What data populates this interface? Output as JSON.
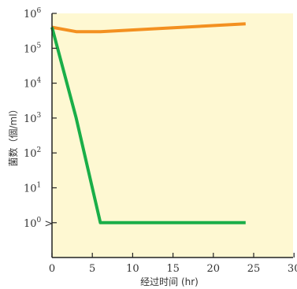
{
  "chart_data": {
    "type": "line",
    "xlabel": "经过时间 (hr)",
    "ylabel": "菌数（個/ml）",
    "xlim": [
      0,
      30
    ],
    "ylim_log10": [
      -1,
      6
    ],
    "y_scale": "log",
    "x_ticks": [
      0,
      5,
      10,
      15,
      20,
      25,
      30
    ],
    "x_tick_labels": [
      "0",
      "5",
      "10",
      "15",
      "20",
      "25",
      "30"
    ],
    "y_ticks": [
      {
        "exp": 0,
        "base": "10",
        "sup": "0",
        "suffix": " >"
      },
      {
        "exp": 1,
        "base": "10",
        "sup": "1",
        "suffix": ""
      },
      {
        "exp": 2,
        "base": "10",
        "sup": "2",
        "suffix": ""
      },
      {
        "exp": 3,
        "base": "10",
        "sup": "3",
        "suffix": ""
      },
      {
        "exp": 4,
        "base": "10",
        "sup": "4",
        "suffix": ""
      },
      {
        "exp": 5,
        "base": "10",
        "sup": "5",
        "suffix": ""
      },
      {
        "exp": 6,
        "base": "10",
        "sup": "6",
        "suffix": ""
      }
    ],
    "series": [
      {
        "color": "#f39020",
        "x": [
          0,
          3,
          6,
          24
        ],
        "y": [
          400000,
          300000,
          300000,
          500000
        ]
      },
      {
        "color": "#1aae48",
        "x": [
          0,
          3,
          6,
          24
        ],
        "y": [
          400000,
          1000,
          1,
          1
        ]
      }
    ],
    "grid": false,
    "plot_background": "#fef8d2",
    "axis_color": "#222222"
  }
}
